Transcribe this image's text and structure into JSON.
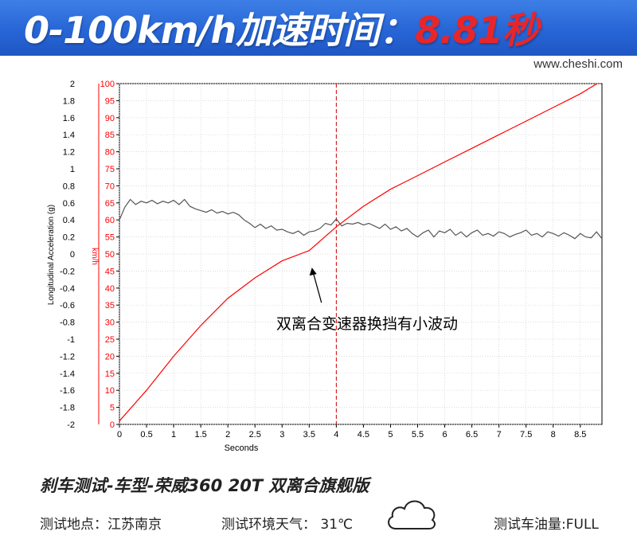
{
  "header": {
    "title_prefix": "0-100km/h加速时间：",
    "title_value": "8.81秒",
    "watermark": "www.cheshi.com"
  },
  "colors": {
    "banner_blue": "#2765d6",
    "accent_red": "#e8262a",
    "speed_line": "#ff0000",
    "accel_line": "#555555"
  },
  "chart_data": {
    "type": "line",
    "xlabel": "Seconds",
    "ylabel_left": "Longitudinal Acceleration (g)",
    "ylabel_right": "km/h",
    "xlim": [
      0,
      8.9
    ],
    "ylim_left": [
      -2,
      2
    ],
    "ylim_right": [
      0,
      100
    ],
    "x_ticks": [
      "0",
      "0.5",
      "1",
      "1.5",
      "2",
      "2.5",
      "3",
      "3.5",
      "4",
      "4.5",
      "5",
      "5.5",
      "6",
      "6.5",
      "7",
      "7.5",
      "8",
      "8.5"
    ],
    "y_left_ticks": [
      "2",
      "1.8",
      "1.6",
      "1.4",
      "1.2",
      "1",
      "0.8",
      "0.6",
      "0.4",
      "0.2",
      "0",
      "-0.2",
      "-0.4",
      "-0.6",
      "-0.8",
      "-1",
      "-1.2",
      "-1.4",
      "-1.6",
      "-1.8",
      "-2"
    ],
    "y_right_ticks": [
      "100",
      "95",
      "90",
      "85",
      "80",
      "75",
      "70",
      "65",
      "60",
      "55",
      "50",
      "45",
      "40",
      "35",
      "30",
      "25",
      "20",
      "15",
      "10",
      "5",
      "0"
    ],
    "grid": true,
    "marker_line_x": 4.0,
    "series": [
      {
        "axis": "right",
        "color": "#ff0000",
        "x": [
          0,
          0.5,
          1,
          1.5,
          2,
          2.5,
          3,
          3.5,
          4,
          4.5,
          5,
          5.5,
          6,
          6.5,
          7,
          7.5,
          8,
          8.5,
          8.81
        ],
        "values": [
          1,
          10,
          20,
          29,
          37,
          43,
          48,
          51,
          58,
          64,
          69,
          73,
          77,
          81,
          85,
          89,
          93,
          97,
          100
        ]
      },
      {
        "axis": "left",
        "color": "#555555",
        "x": [
          0,
          0.1,
          0.2,
          0.3,
          0.4,
          0.5,
          0.6,
          0.7,
          0.8,
          0.9,
          1.0,
          1.1,
          1.2,
          1.3,
          1.4,
          1.5,
          1.6,
          1.7,
          1.8,
          1.9,
          2.0,
          2.1,
          2.2,
          2.3,
          2.4,
          2.5,
          2.6,
          2.7,
          2.8,
          2.9,
          3.0,
          3.1,
          3.2,
          3.3,
          3.4,
          3.5,
          3.6,
          3.7,
          3.8,
          3.9,
          4.0,
          4.1,
          4.2,
          4.3,
          4.4,
          4.5,
          4.6,
          4.7,
          4.8,
          4.9,
          5.0,
          5.1,
          5.2,
          5.3,
          5.4,
          5.5,
          5.6,
          5.7,
          5.8,
          5.9,
          6.0,
          6.1,
          6.2,
          6.3,
          6.4,
          6.5,
          6.6,
          6.7,
          6.8,
          6.9,
          7.0,
          7.1,
          7.2,
          7.3,
          7.4,
          7.5,
          7.6,
          7.7,
          7.8,
          7.9,
          8.0,
          8.1,
          8.2,
          8.3,
          8.4,
          8.5,
          8.6,
          8.7,
          8.8,
          8.9
        ],
        "values": [
          0.4,
          0.55,
          0.64,
          0.58,
          0.62,
          0.6,
          0.63,
          0.59,
          0.62,
          0.6,
          0.63,
          0.58,
          0.64,
          0.56,
          0.53,
          0.51,
          0.49,
          0.52,
          0.48,
          0.5,
          0.47,
          0.49,
          0.46,
          0.4,
          0.36,
          0.31,
          0.35,
          0.3,
          0.33,
          0.28,
          0.29,
          0.26,
          0.24,
          0.27,
          0.22,
          0.26,
          0.27,
          0.3,
          0.36,
          0.34,
          0.41,
          0.33,
          0.36,
          0.35,
          0.37,
          0.34,
          0.36,
          0.33,
          0.3,
          0.35,
          0.29,
          0.32,
          0.27,
          0.3,
          0.24,
          0.2,
          0.25,
          0.28,
          0.2,
          0.27,
          0.25,
          0.29,
          0.22,
          0.26,
          0.2,
          0.25,
          0.28,
          0.22,
          0.24,
          0.21,
          0.26,
          0.24,
          0.2,
          0.23,
          0.25,
          0.28,
          0.22,
          0.24,
          0.2,
          0.26,
          0.24,
          0.21,
          0.25,
          0.22,
          0.18,
          0.24,
          0.2,
          0.19,
          0.26,
          0.18
        ]
      }
    ],
    "annotation": {
      "text": "双离合变速器换挡有小波动",
      "arrow_to": {
        "x": 3.55,
        "axis": "right",
        "value": 46
      }
    }
  },
  "footer": {
    "caption": "刹车测试-车型-荣威360 20T 双离合旗舰版",
    "location": "测试地点：江苏南京",
    "weather": "测试环境天气：  31℃",
    "weather_icon": "cloud-icon",
    "fuel": "测试车油量:FULL"
  }
}
